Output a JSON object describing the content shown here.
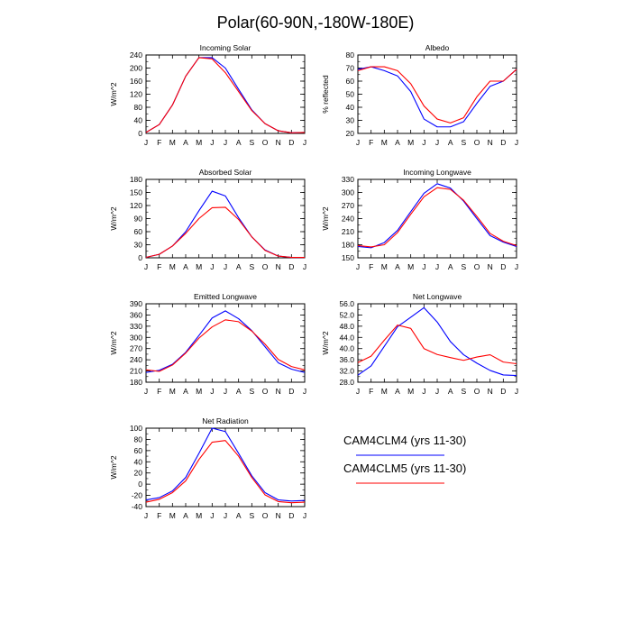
{
  "title": "Polar(60-90N,-180W-180E)",
  "months": [
    "J",
    "F",
    "M",
    "A",
    "M",
    "J",
    "J",
    "A",
    "S",
    "O",
    "N",
    "D",
    "J"
  ],
  "colors": {
    "series1": "#0000ff",
    "series2": "#ff0000"
  },
  "legend": {
    "entries": [
      {
        "label": "CAM4CLM4 (yrs 11-30)",
        "color": "#0000ff"
      },
      {
        "label": "CAM4CLM5 (yrs 11-30)",
        "color": "#ff0000"
      }
    ]
  },
  "chart_data": [
    {
      "type": "line",
      "title": "Incoming Solar",
      "ylabel": "W/m^2",
      "ylim": [
        0,
        240
      ],
      "yticks": [
        "0",
        "40",
        "80",
        "120",
        "160",
        "200",
        "240"
      ],
      "yminor": 20,
      "series": [
        {
          "name": "CAM4CLM4 (yrs 11-30)",
          "values": [
            3,
            27,
            87,
            175,
            232,
            232,
            200,
            135,
            72,
            30,
            8,
            2,
            3
          ]
        },
        {
          "name": "CAM4CLM5 (yrs 11-30)",
          "values": [
            3,
            27,
            87,
            175,
            232,
            228,
            186,
            128,
            70,
            30,
            8,
            2,
            3
          ]
        }
      ]
    },
    {
      "type": "line",
      "title": "Albedo",
      "ylabel": "% reflected",
      "ylim": [
        20,
        80
      ],
      "yticks": [
        "20",
        "30",
        "40",
        "50",
        "60",
        "70",
        "80"
      ],
      "yminor": 5,
      "series": [
        {
          "name": "CAM4CLM4 (yrs 11-30)",
          "values": [
            69,
            71,
            68,
            64,
            52,
            31,
            25,
            25,
            29,
            43,
            56,
            60,
            69
          ]
        },
        {
          "name": "CAM4CLM5 (yrs 11-30)",
          "values": [
            68,
            71,
            71,
            68,
            58,
            41,
            31,
            28,
            32,
            48,
            60,
            60,
            69
          ]
        }
      ]
    },
    {
      "type": "line",
      "title": "Absorbed Solar",
      "ylabel": "W/m^2",
      "ylim": [
        0,
        180
      ],
      "yticks": [
        "0",
        "30",
        "60",
        "90",
        "120",
        "150",
        "180"
      ],
      "yminor": 15,
      "series": [
        {
          "name": "CAM4CLM4 (yrs 11-30)",
          "values": [
            1,
            8,
            27,
            60,
            108,
            153,
            142,
            92,
            48,
            18,
            4,
            1,
            1
          ]
        },
        {
          "name": "CAM4CLM5 (yrs 11-30)",
          "values": [
            1,
            8,
            27,
            56,
            90,
            115,
            116,
            88,
            48,
            17,
            4,
            1,
            1
          ]
        }
      ]
    },
    {
      "type": "line",
      "title": "Incoming Longwave",
      "ylabel": "W/m^2",
      "ylim": [
        150,
        330
      ],
      "yticks": [
        "150",
        "180",
        "210",
        "240",
        "270",
        "300",
        "330"
      ],
      "yminor": 15,
      "series": [
        {
          "name": "CAM4CLM4 (yrs 11-30)",
          "values": [
            176,
            173,
            185,
            213,
            256,
            298,
            320,
            310,
            280,
            240,
            201,
            186,
            176
          ]
        },
        {
          "name": "CAM4CLM5 (yrs 11-30)",
          "values": [
            178,
            175,
            180,
            208,
            250,
            290,
            311,
            307,
            282,
            245,
            206,
            188,
            178
          ]
        }
      ]
    },
    {
      "type": "line",
      "title": "Emitted Longwave",
      "ylabel": "W/m^2",
      "ylim": [
        180,
        390
      ],
      "yticks": [
        "180",
        "210",
        "240",
        "270",
        "300",
        "330",
        "360",
        "390"
      ],
      "yminor": 15,
      "series": [
        {
          "name": "CAM4CLM4 (yrs 11-30)",
          "values": [
            206,
            212,
            228,
            260,
            305,
            352,
            371,
            350,
            318,
            275,
            232,
            215,
            206
          ]
        },
        {
          "name": "CAM4CLM5 (yrs 11-30)",
          "values": [
            213,
            209,
            226,
            258,
            298,
            328,
            347,
            342,
            317,
            282,
            241,
            222,
            213
          ]
        }
      ]
    },
    {
      "type": "line",
      "title": "Net Longwave",
      "ylabel": "W/m^2",
      "ylim": [
        28,
        56
      ],
      "yticks": [
        "28.0",
        "32.0",
        "36.0",
        "40.0",
        "44.0",
        "48.0",
        "52.0",
        "56.0"
      ],
      "yminor": 2,
      "series": [
        {
          "name": "CAM4CLM4 (yrs 11-30)",
          "values": [
            30.5,
            33.8,
            40.8,
            47.8,
            51.2,
            54.6,
            49.5,
            42.5,
            37.8,
            34.8,
            32.2,
            30.6,
            30.4
          ]
        },
        {
          "name": "CAM4CLM5 (yrs 11-30)",
          "values": [
            35.0,
            37.3,
            43.0,
            48.4,
            47.2,
            40.0,
            37.9,
            36.8,
            35.8,
            37.0,
            37.8,
            35.2,
            34.6
          ]
        }
      ]
    },
    {
      "type": "line",
      "title": "Net Radiation",
      "ylabel": "W/m^2",
      "ylim": [
        -40,
        100
      ],
      "yticks": [
        "-40",
        "-20",
        "0",
        "20",
        "40",
        "60",
        "80",
        "100"
      ],
      "yminor": 10,
      "series": [
        {
          "name": "CAM4CLM4 (yrs 11-30)",
          "values": [
            -28,
            -24,
            -12,
            12,
            55,
            100,
            94,
            55,
            15,
            -15,
            -28,
            -30,
            -29
          ]
        },
        {
          "name": "CAM4CLM5 (yrs 11-30)",
          "values": [
            -32,
            -27,
            -15,
            6,
            44,
            75,
            78,
            50,
            12,
            -19,
            -31,
            -33,
            -32
          ]
        }
      ]
    }
  ]
}
